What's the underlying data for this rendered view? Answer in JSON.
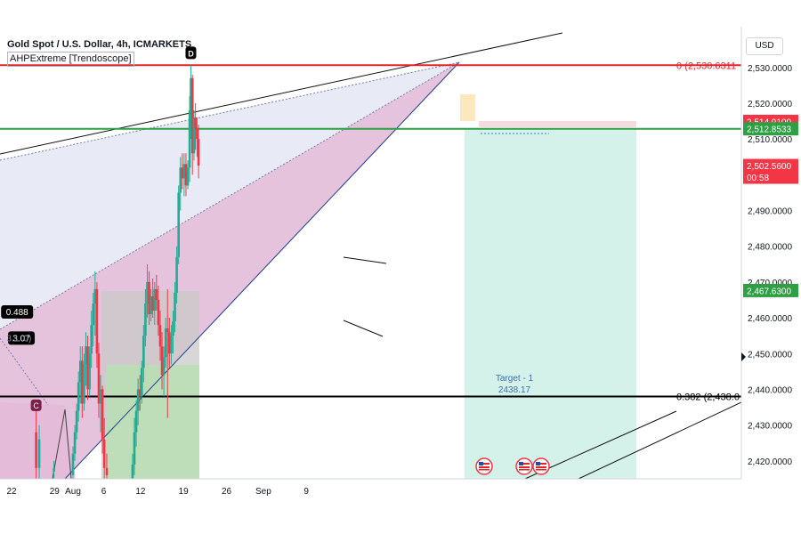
{
  "header": {
    "title": "Gold Spot / U.S. Dollar, 4h, ICMARKETS",
    "indicator": "AHPExtreme [Trendoscope]"
  },
  "currency": "USD",
  "chart_data": {
    "type": "candlestick",
    "ylim": [
      2413.5,
      2538
    ],
    "x_ticks": [
      {
        "label": "22",
        "x": 0
      },
      {
        "label": "29",
        "x": 7
      },
      {
        "label": "Aug",
        "x": 10
      },
      {
        "label": "6",
        "x": 15
      },
      {
        "label": "12",
        "x": 21
      },
      {
        "label": "19",
        "x": 28
      },
      {
        "label": "26",
        "x": 35
      },
      {
        "label": "Sep",
        "x": 41
      },
      {
        "label": "9",
        "x": 48
      }
    ],
    "y_ticks": [
      2420,
      2430,
      2440,
      2450,
      2460,
      2470,
      2480,
      2490,
      2500,
      2510,
      2520,
      2530
    ],
    "y_tick_labels": [
      "2,420.0000",
      "2,430.0000",
      "2,440.0000",
      "2,450.0000",
      "2,460.0000",
      "2,470.0000",
      "2,480.0000",
      "2,490.0000",
      "2,500.0000",
      "2,510.0000",
      "2,520.0000",
      "2,530.0000"
    ],
    "price_labels": [
      {
        "price": 2514.91,
        "text": "2,514.9100",
        "color": "#f23645"
      },
      {
        "price": 2512.8533,
        "text": "2,512.8533",
        "color": "#2ea043"
      },
      {
        "price": 2502.56,
        "text": "2,502.5600",
        "color": "#f23645",
        "subtext": "00:58"
      },
      {
        "price": 2467.63,
        "text": "2,467.6300",
        "color": "#2ea043"
      }
    ],
    "horizontal_levels": [
      {
        "price": 2530.6311,
        "color": "#e0252b",
        "label": "0 (2,530.6311"
      },
      {
        "price": 2438.0,
        "color": "#000000",
        "label": "0.382 (2,438.0"
      },
      {
        "price": 2512.8533,
        "color": "#2ea043",
        "label": ""
      }
    ],
    "pattern_points": [
      {
        "label": "D",
        "x": 29.2,
        "price": 2530.6
      },
      {
        "label": "C",
        "x": 4,
        "price": 2435.4
      }
    ],
    "ratio_labels": [
      {
        "text": "0.488",
        "x": 0.9,
        "price": 2461.5
      },
      {
        "text": "3.07",
        "x": 1.6,
        "price": 2454.2
      },
      {
        "text": "3.1",
        "x": 0.2,
        "price": 2454.2
      },
      {
        "text": "0)",
        "x": 2.6,
        "price": 2454.2
      }
    ],
    "target": {
      "title": "Target - 1",
      "value": "2438.17"
    },
    "candles": [
      {
        "x": 4,
        "o": 2428,
        "h": 2435,
        "l": 2414,
        "c": 2418
      },
      {
        "x": 4.5,
        "o": 2418,
        "h": 2430,
        "l": 2413,
        "c": 2426
      },
      {
        "x": 6.9,
        "o": 2417,
        "h": 2420,
        "l": 2415,
        "c": 2418
      },
      {
        "x": 10.0,
        "o": 2416,
        "h": 2424,
        "l": 2414,
        "c": 2422
      },
      {
        "x": 10.3,
        "o": 2422,
        "h": 2430,
        "l": 2420,
        "c": 2428
      },
      {
        "x": 10.6,
        "o": 2428,
        "h": 2436,
        "l": 2426,
        "c": 2434
      },
      {
        "x": 10.9,
        "o": 2434,
        "h": 2445,
        "l": 2431,
        "c": 2442
      },
      {
        "x": 11.2,
        "o": 2442,
        "h": 2452,
        "l": 2436,
        "c": 2448
      },
      {
        "x": 11.5,
        "o": 2448,
        "h": 2452,
        "l": 2432,
        "c": 2436
      },
      {
        "x": 11.8,
        "o": 2436,
        "h": 2450,
        "l": 2434,
        "c": 2447
      },
      {
        "x": 12.1,
        "o": 2447,
        "h": 2456,
        "l": 2441,
        "c": 2452
      },
      {
        "x": 12.4,
        "o": 2452,
        "h": 2455,
        "l": 2437,
        "c": 2440
      },
      {
        "x": 12.7,
        "o": 2440,
        "h": 2452,
        "l": 2438,
        "c": 2450
      },
      {
        "x": 13.0,
        "o": 2450,
        "h": 2462,
        "l": 2446,
        "c": 2458
      },
      {
        "x": 13.3,
        "o": 2458,
        "h": 2467,
        "l": 2452,
        "c": 2464
      },
      {
        "x": 13.6,
        "o": 2464,
        "h": 2473,
        "l": 2455,
        "c": 2468
      },
      {
        "x": 13.9,
        "o": 2468,
        "h": 2470,
        "l": 2446,
        "c": 2450
      },
      {
        "x": 14.2,
        "o": 2450,
        "h": 2453,
        "l": 2432,
        "c": 2436
      },
      {
        "x": 14.5,
        "o": 2436,
        "h": 2444,
        "l": 2428,
        "c": 2440
      },
      {
        "x": 14.8,
        "o": 2440,
        "h": 2441,
        "l": 2422,
        "c": 2426
      },
      {
        "x": 15.1,
        "o": 2426,
        "h": 2432,
        "l": 2415,
        "c": 2418
      },
      {
        "x": 15.5,
        "o": 2418,
        "h": 2422,
        "l": 2413,
        "c": 2416
      },
      {
        "x": 19.7,
        "o": 2414,
        "h": 2422,
        "l": 2413,
        "c": 2419
      },
      {
        "x": 20.0,
        "o": 2419,
        "h": 2432,
        "l": 2416,
        "c": 2428
      },
      {
        "x": 20.3,
        "o": 2428,
        "h": 2437,
        "l": 2424,
        "c": 2434
      },
      {
        "x": 20.6,
        "o": 2434,
        "h": 2443,
        "l": 2430,
        "c": 2440
      },
      {
        "x": 20.9,
        "o": 2440,
        "h": 2444,
        "l": 2434,
        "c": 2438
      },
      {
        "x": 21.2,
        "o": 2438,
        "h": 2448,
        "l": 2436,
        "c": 2446
      },
      {
        "x": 21.5,
        "o": 2446,
        "h": 2458,
        "l": 2442,
        "c": 2455
      },
      {
        "x": 21.8,
        "o": 2455,
        "h": 2468,
        "l": 2452,
        "c": 2464
      },
      {
        "x": 22.1,
        "o": 2464,
        "h": 2475,
        "l": 2460,
        "c": 2470
      },
      {
        "x": 22.4,
        "o": 2470,
        "h": 2473,
        "l": 2458,
        "c": 2461
      },
      {
        "x": 22.7,
        "o": 2461,
        "h": 2468,
        "l": 2459,
        "c": 2466
      },
      {
        "x": 23.0,
        "o": 2466,
        "h": 2471,
        "l": 2460,
        "c": 2462
      },
      {
        "x": 23.3,
        "o": 2462,
        "h": 2470,
        "l": 2458,
        "c": 2468
      },
      {
        "x": 23.6,
        "o": 2468,
        "h": 2472,
        "l": 2462,
        "c": 2465
      },
      {
        "x": 23.9,
        "o": 2465,
        "h": 2469,
        "l": 2455,
        "c": 2458
      },
      {
        "x": 24.2,
        "o": 2458,
        "h": 2462,
        "l": 2448,
        "c": 2452
      },
      {
        "x": 24.5,
        "o": 2452,
        "h": 2456,
        "l": 2440,
        "c": 2444
      },
      {
        "x": 24.8,
        "o": 2444,
        "h": 2452,
        "l": 2438,
        "c": 2449
      },
      {
        "x": 25.1,
        "o": 2449,
        "h": 2460,
        "l": 2446,
        "c": 2457
      },
      {
        "x": 25.4,
        "o": 2457,
        "h": 2468,
        "l": 2432,
        "c": 2456
      },
      {
        "x": 25.7,
        "o": 2456,
        "h": 2460,
        "l": 2446,
        "c": 2450
      },
      {
        "x": 26.0,
        "o": 2450,
        "h": 2458,
        "l": 2447,
        "c": 2455
      },
      {
        "x": 26.3,
        "o": 2455,
        "h": 2462,
        "l": 2450,
        "c": 2459
      },
      {
        "x": 26.6,
        "o": 2459,
        "h": 2470,
        "l": 2456,
        "c": 2467
      },
      {
        "x": 26.9,
        "o": 2467,
        "h": 2480,
        "l": 2464,
        "c": 2477
      },
      {
        "x": 27.2,
        "o": 2477,
        "h": 2497,
        "l": 2475,
        "c": 2495
      },
      {
        "x": 27.5,
        "o": 2495,
        "h": 2505,
        "l": 2490,
        "c": 2502
      },
      {
        "x": 27.8,
        "o": 2502,
        "h": 2506,
        "l": 2496,
        "c": 2499
      },
      {
        "x": 28.1,
        "o": 2499,
        "h": 2506,
        "l": 2494,
        "c": 2503
      },
      {
        "x": 28.4,
        "o": 2503,
        "h": 2506,
        "l": 2494,
        "c": 2497
      },
      {
        "x": 28.7,
        "o": 2497,
        "h": 2504,
        "l": 2496,
        "c": 2502
      },
      {
        "x": 29.0,
        "o": 2502,
        "h": 2522,
        "l": 2498,
        "c": 2518
      },
      {
        "x": 29.2,
        "o": 2518,
        "h": 2530.6,
        "l": 2510,
        "c": 2527
      },
      {
        "x": 29.45,
        "o": 2527,
        "h": 2528,
        "l": 2500,
        "c": 2506
      },
      {
        "x": 29.7,
        "o": 2506,
        "h": 2518,
        "l": 2504,
        "c": 2516
      },
      {
        "x": 29.95,
        "o": 2516,
        "h": 2520,
        "l": 2507,
        "c": 2513
      },
      {
        "x": 30.2,
        "o": 2513,
        "h": 2516,
        "l": 2505,
        "c": 2510
      },
      {
        "x": 30.45,
        "o": 2510,
        "h": 2514,
        "l": 2499,
        "c": 2502.56
      }
    ]
  }
}
